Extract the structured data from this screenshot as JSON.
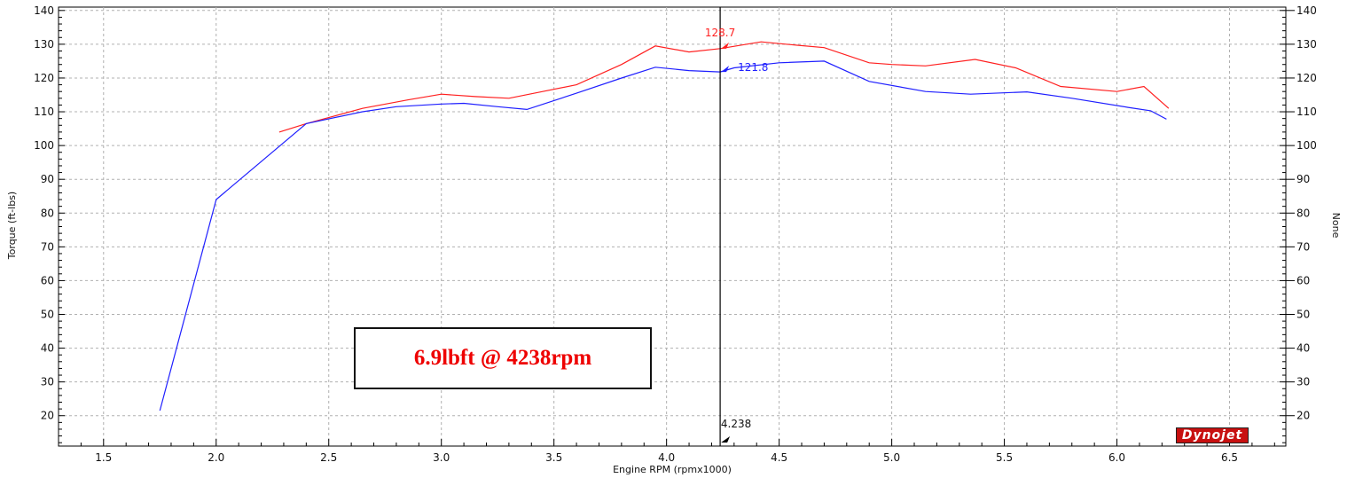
{
  "colors": {
    "series_red": "#ff2020",
    "series_blue": "#1f1fff",
    "annotation_text": "#ee0000",
    "grid": "#b0b0b0",
    "cursor": "#000000"
  },
  "annotation": {
    "text": "6.9lbft @ 4238rpm"
  },
  "logo": {
    "text": "Dynojet"
  },
  "chart_data": {
    "type": "line",
    "xlabel": "Engine RPM (rpmx1000)",
    "ylabel": "Torque (ft-lbs)",
    "y2label": "None",
    "xlim": [
      1.3,
      6.75
    ],
    "ylim": [
      11,
      141
    ],
    "x_ticks": [
      "1.5",
      "2.0",
      "2.5",
      "3.0",
      "3.5",
      "4.0",
      "4.5",
      "5.0",
      "5.5",
      "6.0",
      "6.5"
    ],
    "y_ticks": [
      "20",
      "30",
      "40",
      "50",
      "60",
      "70",
      "80",
      "90",
      "100",
      "110",
      "120",
      "130",
      "140"
    ],
    "grid": true,
    "series": [
      {
        "color": "#ff2020",
        "points": [
          [
            2.28,
            104.0
          ],
          [
            2.4,
            106.5
          ],
          [
            2.65,
            111.0
          ],
          [
            2.85,
            113.5
          ],
          [
            3.0,
            115.2
          ],
          [
            3.15,
            114.5
          ],
          [
            3.3,
            114.0
          ],
          [
            3.45,
            116.0
          ],
          [
            3.6,
            118.0
          ],
          [
            3.8,
            124.0
          ],
          [
            3.95,
            129.5
          ],
          [
            4.1,
            127.7
          ],
          [
            4.238,
            128.7
          ],
          [
            4.42,
            130.7
          ],
          [
            4.58,
            129.7
          ],
          [
            4.7,
            129.0
          ],
          [
            4.9,
            124.5
          ],
          [
            5.0,
            124.0
          ],
          [
            5.15,
            123.6
          ],
          [
            5.37,
            125.5
          ],
          [
            5.55,
            123.0
          ],
          [
            5.75,
            117.5
          ],
          [
            6.0,
            116.0
          ],
          [
            6.12,
            117.5
          ],
          [
            6.23,
            111.0
          ]
        ]
      },
      {
        "color": "#1f1fff",
        "points": [
          [
            1.75,
            21.5
          ],
          [
            2.0,
            84.0
          ],
          [
            2.4,
            106.5
          ],
          [
            2.65,
            110.0
          ],
          [
            2.8,
            111.5
          ],
          [
            3.0,
            112.3
          ],
          [
            3.1,
            112.5
          ],
          [
            3.25,
            111.5
          ],
          [
            3.38,
            110.7
          ],
          [
            3.6,
            115.5
          ],
          [
            3.8,
            120.0
          ],
          [
            3.95,
            123.2
          ],
          [
            4.1,
            122.2
          ],
          [
            4.238,
            121.8
          ],
          [
            4.3,
            123.0
          ],
          [
            4.5,
            124.5
          ],
          [
            4.7,
            125.0
          ],
          [
            4.9,
            119.0
          ],
          [
            5.15,
            116.0
          ],
          [
            5.35,
            115.2
          ],
          [
            5.6,
            115.9
          ],
          [
            5.8,
            114.0
          ],
          [
            6.05,
            111.3
          ],
          [
            6.15,
            110.3
          ],
          [
            6.22,
            107.8
          ]
        ]
      }
    ],
    "cursor": {
      "x": 4.238,
      "x_label": "4.238",
      "values": [
        {
          "label": "128.7",
          "y": 128.7,
          "color": "#ff2020"
        },
        {
          "label": "121.8",
          "y": 121.8,
          "color": "#1f1fff"
        }
      ]
    }
  }
}
